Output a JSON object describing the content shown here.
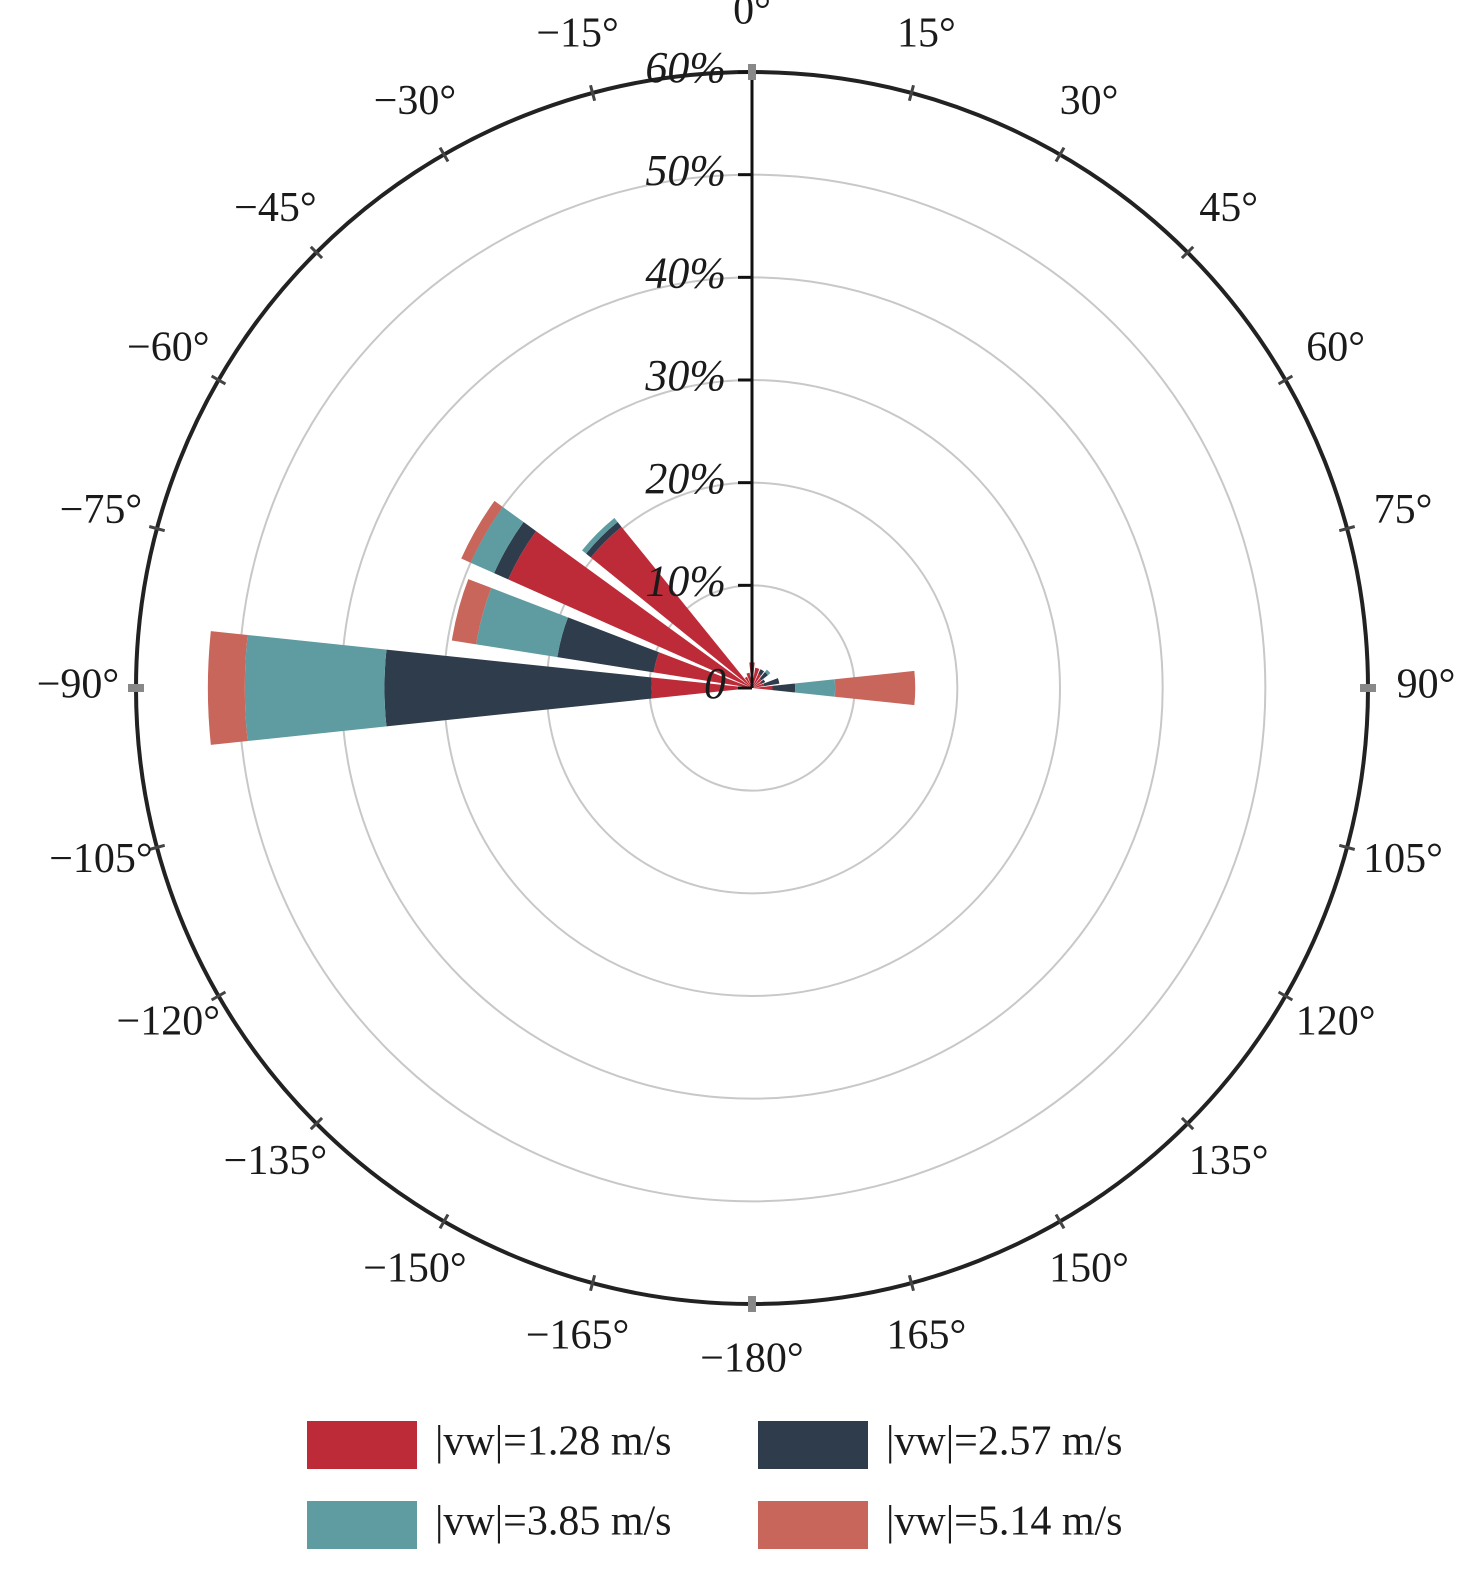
{
  "chart_data": {
    "type": "windrose",
    "x": [
      -90,
      -75,
      -60,
      -45,
      -30,
      -15,
      0,
      15,
      30,
      45,
      60,
      75,
      90
    ],
    "bar_width_deg": 12,
    "series": [
      {
        "name": "|vw|=1.28 m/s",
        "color": "#bd2b38",
        "values": [
          9.8,
          9.7,
          26,
          20.2,
          1.2,
          1.5,
          2.5,
          2,
          1.5,
          1.2,
          1,
          1.2,
          2
        ]
      },
      {
        "name": "|vw|=2.57 m/s",
        "color": "#2e3c4c",
        "values": [
          26,
          9.5,
          1.5,
          0.6,
          0,
          0,
          0,
          0,
          0.5,
          0.8,
          0.4,
          1.5,
          2.2
        ]
      },
      {
        "name": "|vw|=3.85 m/s",
        "color": "#5e9ca2",
        "values": [
          13.6,
          8,
          2.5,
          0.5,
          0,
          0,
          0,
          0,
          0,
          0.3,
          0,
          0,
          3.9
        ]
      },
      {
        "name": "|vw|=5.14 m/s",
        "color": "#c8665b",
        "values": [
          3.6,
          2.4,
          1,
          0,
          0,
          0,
          0,
          0,
          0,
          0,
          0,
          0,
          7.8
        ]
      }
    ],
    "ylim": [
      0,
      60
    ],
    "yticks": [
      0,
      {
        "value": 10,
        "label": "10%"
      },
      {
        "value": 20,
        "label": "20%"
      },
      {
        "value": 30,
        "label": "30%"
      },
      {
        "value": 40,
        "label": "40%"
      },
      {
        "value": 50,
        "label": "50%"
      },
      {
        "value": 60,
        "label": "60%"
      }
    ],
    "xticks": [
      {
        "value": 0,
        "label": "0°"
      },
      {
        "value": 15,
        "label": "15°"
      },
      {
        "value": 30,
        "label": "30°"
      },
      {
        "value": 45,
        "label": "45°"
      },
      {
        "value": 60,
        "label": "60°"
      },
      {
        "value": 75,
        "label": "75°"
      },
      {
        "value": 90,
        "label": "90°"
      },
      {
        "value": 105,
        "label": "105°"
      },
      {
        "value": 120,
        "label": "120°"
      },
      {
        "value": 135,
        "label": "135°"
      },
      {
        "value": 150,
        "label": "150°"
      },
      {
        "value": 165,
        "label": "165°"
      },
      {
        "value": -180,
        "label": "−180°"
      },
      {
        "value": -165,
        "label": "−165°"
      },
      {
        "value": -150,
        "label": "−150°"
      },
      {
        "value": -135,
        "label": "−135°"
      },
      {
        "value": -120,
        "label": "−120°"
      },
      {
        "value": -105,
        "label": "−105°"
      },
      {
        "value": -90,
        "label": "−90°"
      },
      {
        "value": -75,
        "label": "−75°"
      },
      {
        "value": -60,
        "label": "−60°"
      },
      {
        "value": -45,
        "label": "−45°"
      },
      {
        "value": -30,
        "label": "−30°"
      },
      {
        "value": -15,
        "label": "−15°"
      }
    ],
    "grid": true
  }
}
